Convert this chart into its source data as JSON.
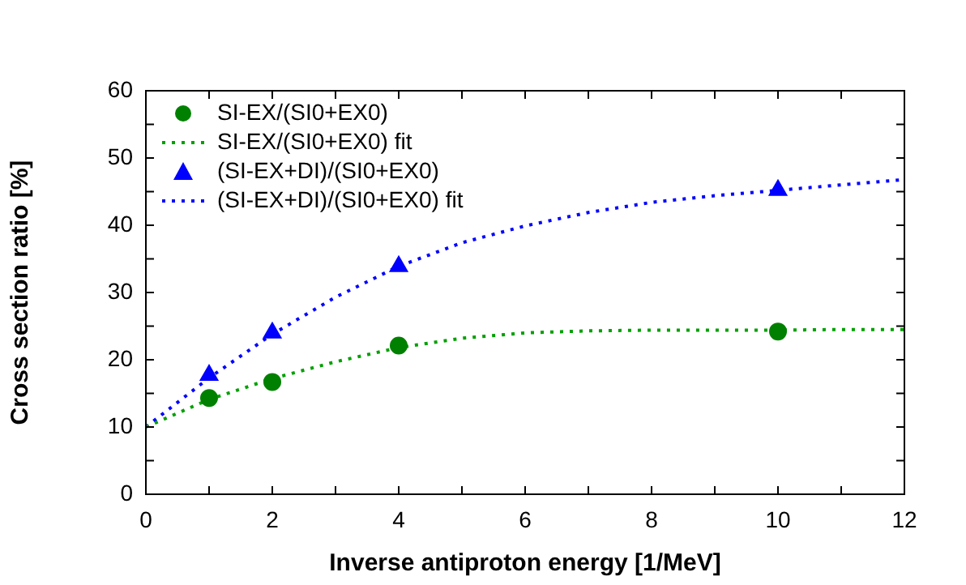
{
  "chart_data": {
    "type": "scatter",
    "xlabel": "Inverse antiproton energy [1/MeV]",
    "ylabel": "Cross section ratio [%]",
    "xlim": [
      0,
      12
    ],
    "ylim": [
      0,
      60
    ],
    "xticks": [
      0,
      {
        "value": 1,
        "label": null
      },
      2,
      {
        "value": 3,
        "label": null
      },
      4,
      {
        "value": 5,
        "label": null
      },
      6,
      {
        "value": 7,
        "label": null
      },
      8,
      {
        "value": 9,
        "label": null
      },
      10,
      {
        "value": 11,
        "label": null
      },
      12
    ],
    "yticks": [
      0,
      {
        "value": 5,
        "label": null
      },
      10,
      {
        "value": 15,
        "label": null
      },
      20,
      {
        "value": 25,
        "label": null
      },
      30,
      {
        "value": 35,
        "label": null
      },
      40,
      {
        "value": 45,
        "label": null
      },
      50,
      {
        "value": 55,
        "label": null
      },
      60
    ],
    "grid": false,
    "legend": "top left",
    "series": [
      {
        "name": "SI-EX/(SI0+EX0)",
        "type": "scatter",
        "marker": "circle",
        "color": "#008000",
        "x": [
          1,
          2,
          4,
          10
        ],
        "values": [
          14.3,
          16.7,
          22.1,
          24.2
        ]
      },
      {
        "name": "SI-EX/(SI0+EX0) fit",
        "type": "line",
        "marker": "none",
        "line_style": "dotted",
        "color": "#00a000",
        "x": [
          0,
          1,
          2,
          3,
          4,
          5,
          6,
          7,
          8,
          9,
          10,
          11,
          12
        ],
        "values": [
          10,
          14.1,
          17.2,
          19.7,
          21.8,
          23.2,
          24.0,
          24.3,
          24.4,
          24.4,
          24.4,
          24.5,
          24.5
        ]
      },
      {
        "name": "(SI-EX+DI)/(SI0+EX0)",
        "type": "scatter",
        "marker": "triangle",
        "color": "#0000ff",
        "x": [
          1,
          2,
          4,
          10
        ],
        "values": [
          17.7,
          24.0,
          33.9,
          45.2
        ]
      },
      {
        "name": "(SI-EX+DI)/(SI0+EX0) fit",
        "type": "line",
        "marker": "none",
        "line_style": "dotted",
        "color": "#0000ff",
        "x": [
          0,
          1,
          2,
          3,
          4,
          5,
          6,
          7,
          8,
          9,
          10,
          11,
          12
        ],
        "values": [
          10,
          17.3,
          23.8,
          29.3,
          33.9,
          37.4,
          39.9,
          41.9,
          43.4,
          44.4,
          45.2,
          46.0,
          46.8
        ]
      }
    ]
  }
}
